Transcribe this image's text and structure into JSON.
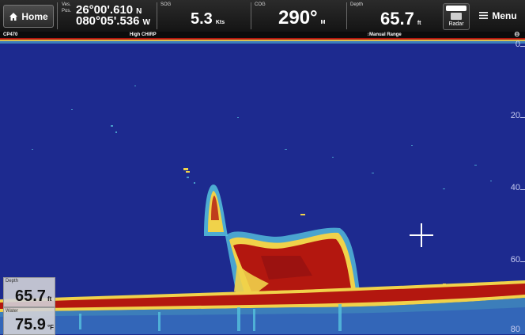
{
  "header": {
    "home_label": "Home",
    "position": {
      "label_line1": "Ves.",
      "label_line2": "Pos.",
      "lat": "26°00'.610",
      "lat_hemi": "N",
      "lon": "080°05'.536",
      "lon_hemi": "W"
    },
    "sog": {
      "label": "SOG",
      "value": "5.3",
      "unit": "Kts"
    },
    "cog": {
      "label": "COG",
      "value": "290°",
      "unit": "M"
    },
    "depth": {
      "label": "Depth",
      "value": "65.7",
      "unit": "ft"
    },
    "radar_label": "Radar",
    "menu_label": "Menu"
  },
  "subheader": {
    "source": "CP470",
    "mode": "High CHIRP",
    "range_mode": "Manual Range"
  },
  "depth_scale": [
    "0",
    "20",
    "40",
    "60",
    "80"
  ],
  "data_boxes": {
    "depth": {
      "label": "Depth",
      "value": "65.7",
      "unit": "ft"
    },
    "water": {
      "label": "Water",
      "value": "75.9",
      "unit": "°F"
    }
  },
  "colors": {
    "background": "#1d2a8f",
    "bottom_red": "#b3170f",
    "echo_yellow": "#f0d24a",
    "echo_cyan": "#56c3de"
  }
}
